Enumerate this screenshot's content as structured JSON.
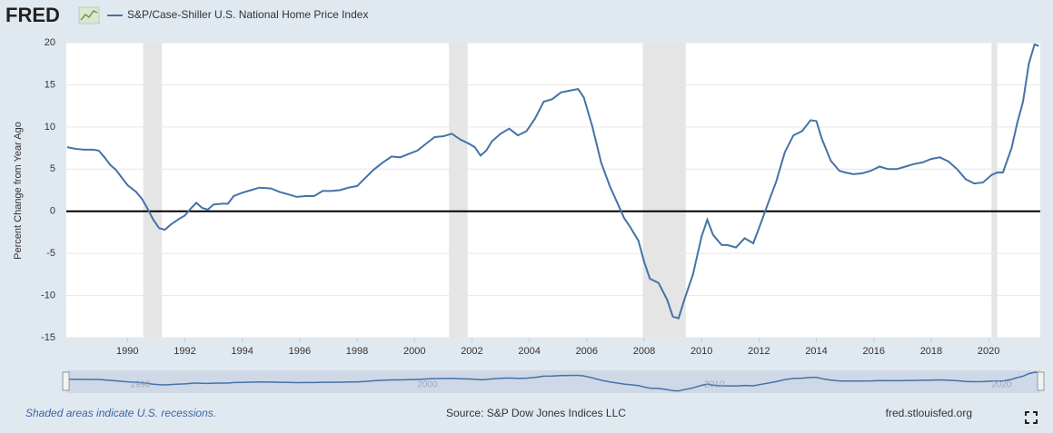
{
  "logo": "FRED",
  "chart_data": {
    "type": "line",
    "title": "S&P/Case-Shiller U.S. National Home Price Index",
    "y_label": "Percent Change from Year Ago",
    "series": [
      {
        "name": "S&P/Case-Shiller U.S. National Home Price Index",
        "color": "#4572a7",
        "x": [
          1987.9,
          1988.2,
          1988.5,
          1988.8,
          1989.0,
          1989.2,
          1989.4,
          1989.6,
          1989.8,
          1990.0,
          1990.3,
          1990.5,
          1990.7,
          1990.9,
          1991.1,
          1991.3,
          1991.5,
          1991.8,
          1992.0,
          1992.2,
          1992.4,
          1992.6,
          1992.8,
          1993.0,
          1993.3,
          1993.5,
          1993.7,
          1994.0,
          1994.3,
          1994.6,
          1995.0,
          1995.3,
          1995.6,
          1995.9,
          1996.2,
          1996.5,
          1996.8,
          1997.1,
          1997.4,
          1997.7,
          1998.0,
          1998.3,
          1998.6,
          1998.9,
          1999.2,
          1999.5,
          1999.8,
          2000.1,
          2000.4,
          2000.7,
          2001.0,
          2001.3,
          2001.6,
          2001.9,
          2002.1,
          2002.3,
          2002.5,
          2002.7,
          2003.0,
          2003.3,
          2003.6,
          2003.9,
          2004.2,
          2004.5,
          2004.8,
          2005.1,
          2005.4,
          2005.7,
          2005.9,
          2006.2,
          2006.5,
          2006.8,
          2007.0,
          2007.3,
          2007.5,
          2007.8,
          2008.0,
          2008.2,
          2008.5,
          2008.8,
          2009.0,
          2009.2,
          2009.4,
          2009.7,
          2010.0,
          2010.2,
          2010.4,
          2010.7,
          2010.9,
          2011.2,
          2011.5,
          2011.8,
          2012.0,
          2012.3,
          2012.6,
          2012.9,
          2013.2,
          2013.5,
          2013.8,
          2014.0,
          2014.2,
          2014.5,
          2014.8,
          2015.0,
          2015.3,
          2015.6,
          2015.9,
          2016.2,
          2016.5,
          2016.8,
          2017.1,
          2017.4,
          2017.7,
          2018.0,
          2018.3,
          2018.6,
          2018.9,
          2019.2,
          2019.5,
          2019.8,
          2020.1,
          2020.3,
          2020.5,
          2020.8,
          2021.0,
          2021.2,
          2021.4,
          2021.6,
          2021.75
        ],
        "values": [
          7.6,
          7.4,
          7.3,
          7.3,
          7.2,
          6.4,
          5.5,
          4.9,
          4.0,
          3.1,
          2.3,
          1.5,
          0.3,
          -1.0,
          -2.0,
          -2.2,
          -1.6,
          -0.9,
          -0.5,
          0.3,
          1.0,
          0.4,
          0.2,
          0.8,
          0.9,
          0.9,
          1.8,
          2.2,
          2.5,
          2.8,
          2.7,
          2.3,
          2.0,
          1.7,
          1.8,
          1.8,
          2.4,
          2.4,
          2.5,
          2.8,
          3.0,
          4.0,
          5.0,
          5.8,
          6.5,
          6.4,
          6.8,
          7.2,
          8.0,
          8.8,
          8.9,
          9.2,
          8.5,
          8.0,
          7.6,
          6.6,
          7.2,
          8.3,
          9.2,
          9.8,
          9.0,
          9.5,
          11.0,
          13.0,
          13.3,
          14.1,
          14.3,
          14.5,
          13.5,
          10.0,
          5.8,
          3.0,
          1.5,
          -0.8,
          -1.8,
          -3.5,
          -6.0,
          -8.0,
          -8.5,
          -10.5,
          -12.5,
          -12.7,
          -10.5,
          -7.5,
          -3.0,
          -1.0,
          -2.8,
          -4.0,
          -4.0,
          -4.3,
          -3.2,
          -3.8,
          -2.0,
          0.8,
          3.5,
          7.0,
          9.0,
          9.5,
          10.8,
          10.7,
          8.5,
          6.0,
          4.8,
          4.6,
          4.4,
          4.5,
          4.8,
          5.3,
          5.0,
          5.0,
          5.3,
          5.6,
          5.8,
          6.2,
          6.4,
          5.9,
          5.0,
          3.8,
          3.3,
          3.4,
          4.3,
          4.6,
          4.6,
          7.5,
          10.5,
          13.0,
          17.5,
          19.8,
          19.6
        ]
      }
    ],
    "recessions": [
      [
        1990.55,
        1991.2
      ],
      [
        2001.2,
        2001.85
      ],
      [
        2007.95,
        2009.45
      ],
      [
        2020.1,
        2020.3
      ]
    ],
    "xlim": [
      1987.87,
      2021.8
    ],
    "xticks": [
      1990,
      1992,
      1994,
      1996,
      1998,
      2000,
      2002,
      2004,
      2006,
      2008,
      2010,
      2012,
      2014,
      2016,
      2018,
      2020
    ],
    "ylim": [
      -15,
      20
    ],
    "yticks": [
      -15,
      -10,
      -5,
      0,
      5,
      10,
      15,
      20
    ],
    "grid": true,
    "navigator_xticks": [
      1990,
      2000,
      2010,
      2020
    ]
  },
  "footer": {
    "note": "Shaded areas indicate U.S. recessions.",
    "source": "Source: S&P Dow Jones Indices LLC",
    "site": "fred.stlouisfed.org"
  }
}
